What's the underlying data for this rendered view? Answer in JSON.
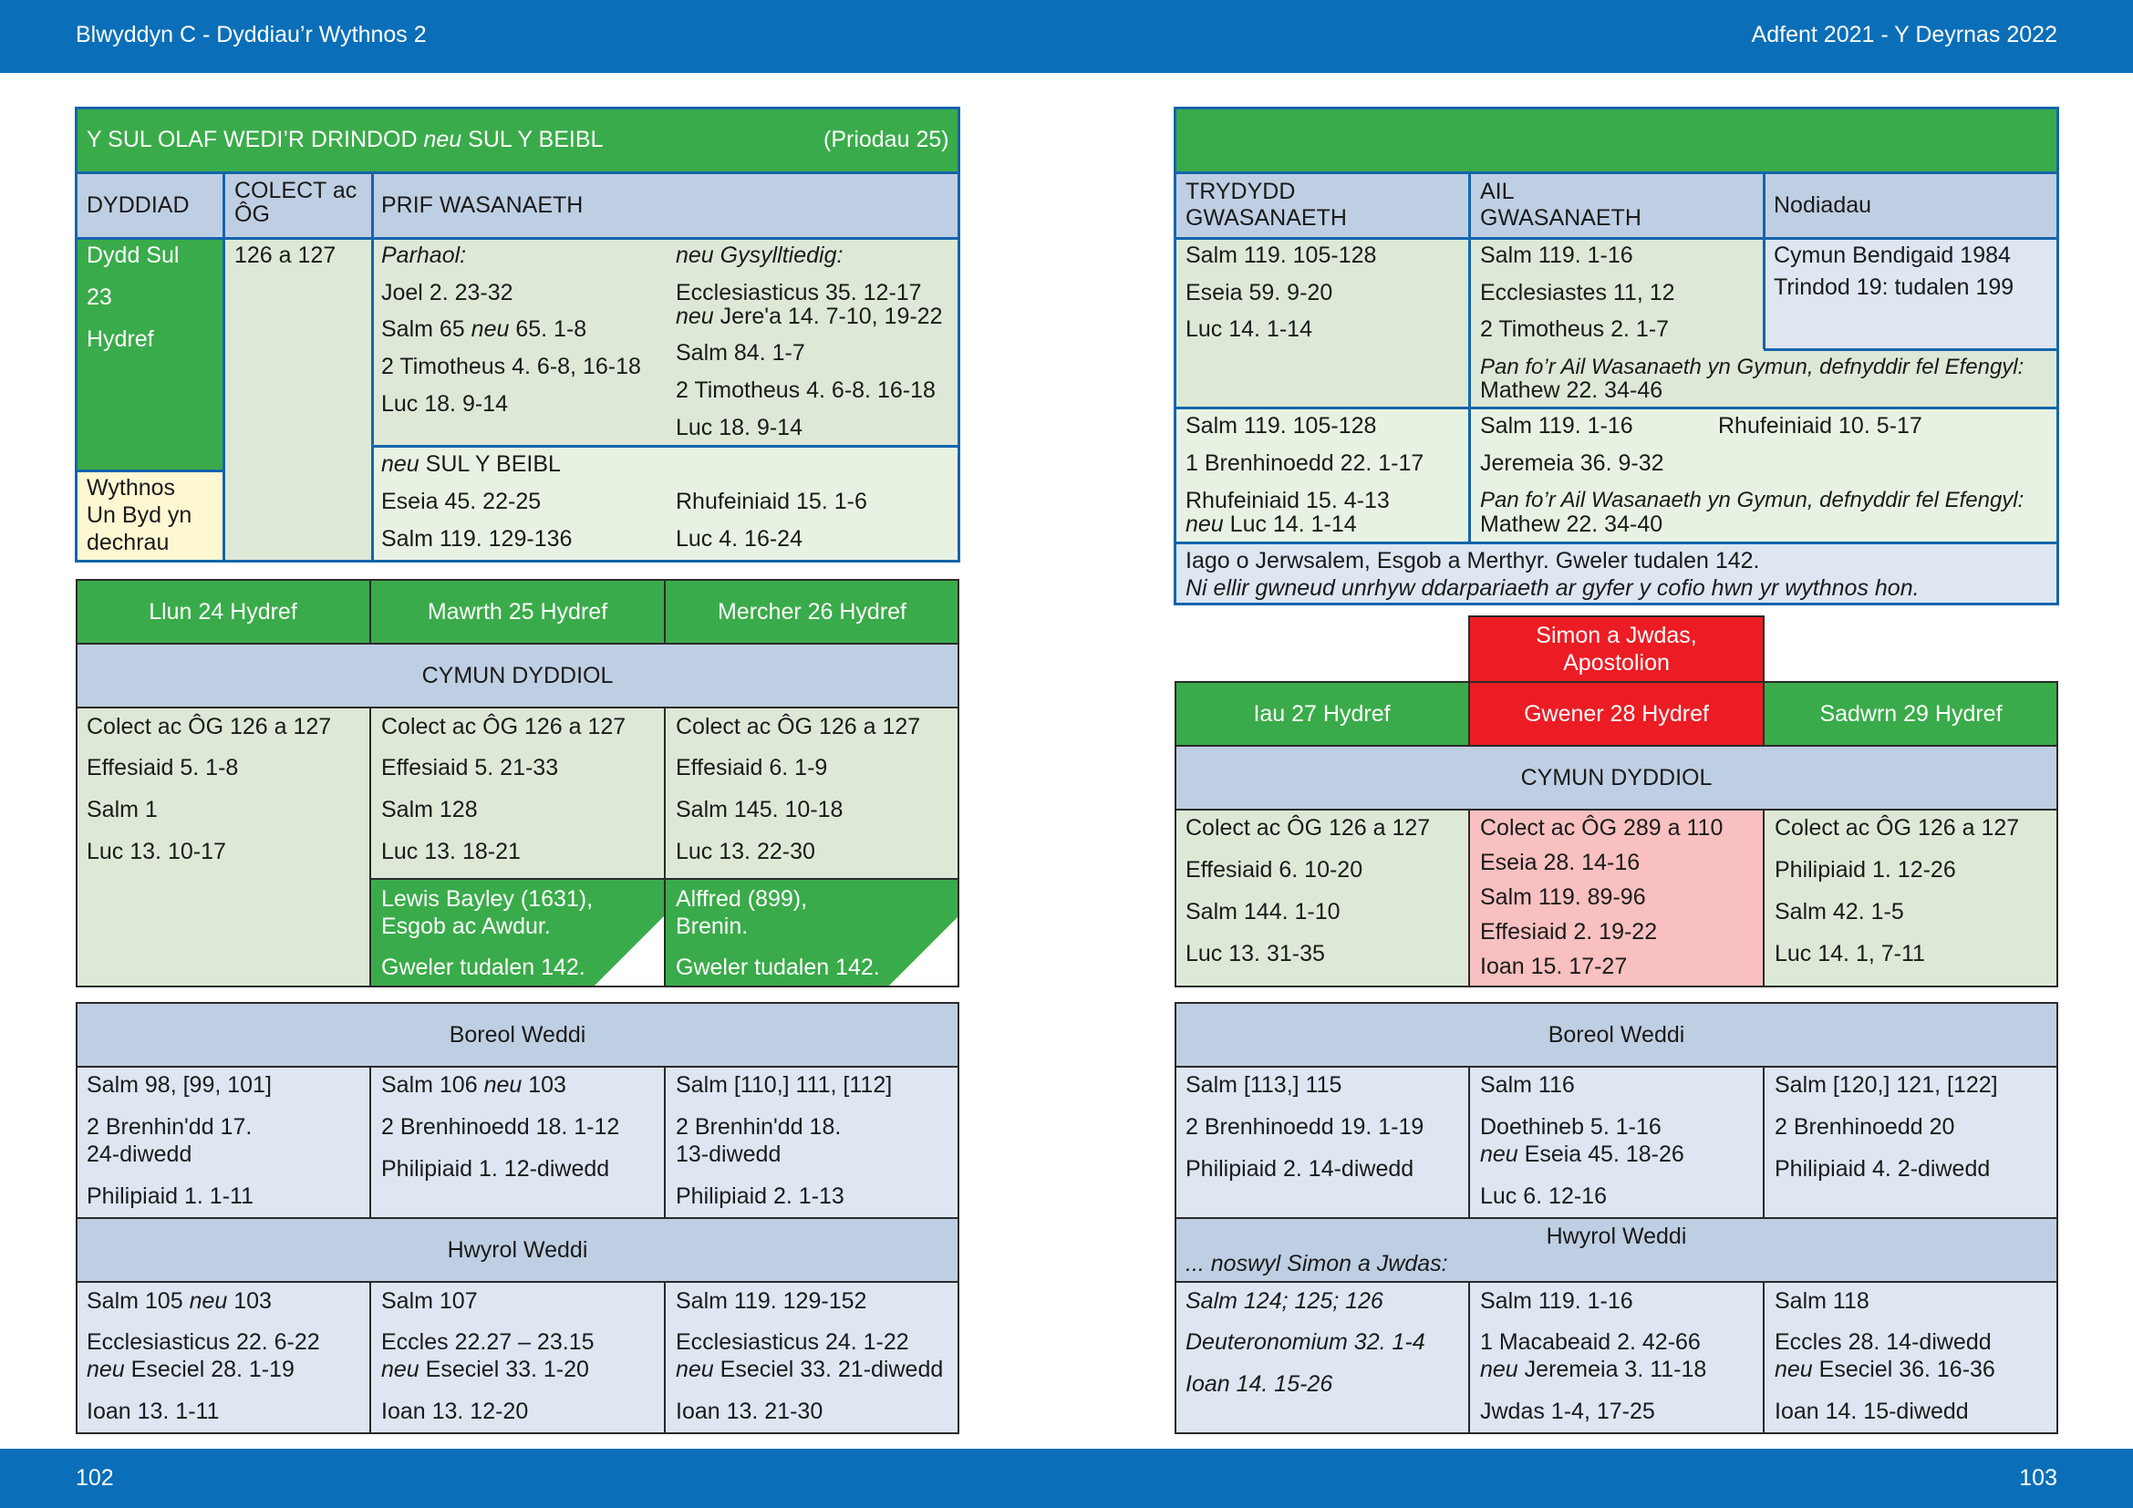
{
  "header": {
    "left": "Blwyddyn  C - Dyddiau’r Wythnos 2",
    "right": "Adfent 2021 - Y Deyrnas 2022"
  },
  "footer": {
    "left_page": "102",
    "right_page": "103"
  },
  "sunday": {
    "title_a": "Y SUL OLAF WEDI’R DRINDOD ",
    "title_neu": "neu",
    "title_b": " SUL Y BEIBL",
    "priodau": "(Priodau 25)",
    "col_dyddiad": "DYDDIAD",
    "col_colect": "COLECT ac ÔG",
    "col_prif": "PRIF WASANAETH",
    "date_lines": [
      "Dydd Sul",
      "23",
      "Hydref"
    ],
    "wythnos": [
      "Wythnos",
      "Un Byd yn",
      "dechrau"
    ],
    "colect_value": "126 a 127",
    "parhaol": "Parhaol:",
    "parhaol_readings": [
      "Joel 2. 23-32",
      "Salm 65 neu 65. 1-8",
      "2 Timotheus 4. 6-8, 16-18",
      "Luc 18. 9-14"
    ],
    "cysylltiedig": "neu Gysylltiedig:",
    "cysylltiedig_readings": [
      "Ecclesiasticus 35. 12-17",
      "neu Jere'a 14. 7-10, 19-22",
      "Salm 84. 1-7",
      "2 Timotheus 4. 6-8. 16-18",
      "Luc 18. 9-14"
    ],
    "beibl_title_neu": "neu",
    "beibl_title": " SUL Y BEIBL",
    "beibl_left": [
      "Eseia 45. 22-25",
      "Salm 119. 129-136"
    ],
    "beibl_right": [
      "Rhufeiniaid 15. 1-6",
      "Luc 4. 16-24"
    ],
    "col_trydydd": "TRYDYDD GWASANAETH",
    "col_ail": "AIL GWASANAETH",
    "col_nodiadau": "Nodiadau",
    "trydydd_1": [
      "Salm 119. 105-128",
      "Eseia 59. 9-20",
      "Luc 14. 1-14"
    ],
    "ail_1": [
      "Salm 119. 1-16",
      "Ecclesiastes 11, 12",
      "2 Timotheus 2. 1-7"
    ],
    "nodiadau": [
      "Cymun Bendigaid 1984",
      "Trindod 19: tudalen 199"
    ],
    "efengyl_1_label": "Pan fo’r Ail Wasanaeth yn Gymun, defnyddir fel Efengyl:",
    "efengyl_1": "Mathew 22. 34-46",
    "trydydd_2": [
      "Salm 119. 105-128",
      "1 Brenhinoedd 22. 1-17",
      "Rhufeiniaid 15. 4-13",
      "neu Luc 14. 1-14"
    ],
    "ail_2": [
      "Salm 119. 1-16",
      "Jeremeia 36. 9-32"
    ],
    "ail_2_extra": "Rhufeiniaid 10. 5-17",
    "efengyl_2_label": "Pan fo’r Ail Wasanaeth yn Gymun, defnyddir fel Efengyl:",
    "efengyl_2": "Mathew 22. 34-40",
    "iago_line": "Iago o Jerwsalem, Esgob a Merthyr. Gweler tudalen 142.",
    "iago_note": "Ni ellir gwneud unrhyw ddarpariaeth ar gyfer y cofio hwn yr wythnos hon."
  },
  "weekdays_left": {
    "days": [
      "Llun 24 Hydref",
      "Mawrth 25 Hydref",
      "Mercher 26 Hydref"
    ],
    "cymun": "CYMUN DYDDIOL",
    "cymun_cols": [
      [
        "Colect ac ÔG 126 a 127",
        "Effesiaid 5. 1-8",
        "Salm 1",
        "Luc 13. 10-17"
      ],
      [
        "Colect ac ÔG 126 a 127",
        "Effesiaid 5. 21-33",
        "Salm 128",
        "Luc 13. 18-21"
      ],
      [
        "Colect ac ÔG 126 a 127",
        "Effesiaid 6. 1-9",
        "Salm 145. 10-18",
        "Luc 13. 22-30"
      ]
    ],
    "commem": [
      {
        "l1": "Lewis Bayley (1631),",
        "l2": "Esgob ac Awdur.",
        "see": "Gweler tudalen 142."
      },
      {
        "l1": "Alffred (899),",
        "l2": "Brenin.",
        "see": "Gweler tudalen 142."
      }
    ],
    "boreol": "Boreol Weddi",
    "boreol_cols": [
      [
        "Salm 98, [99, 101]",
        "2 Brenhin'dd 17.",
        "24-diwedd",
        "Philipiaid 1. 1-11"
      ],
      [
        "Salm 106 neu 103",
        "2 Brenhinoedd 18. 1-12",
        "Philipiaid 1. 12-diwedd"
      ],
      [
        "Salm [110,] 111, [112]",
        "2 Brenhin'dd 18.",
        "13-diwedd",
        "Philipiaid 2. 1-13"
      ]
    ],
    "hwyrol": "Hwyrol Weddi",
    "hwyrol_cols": [
      [
        "Salm 105 neu 103",
        "Ecclesiasticus 22. 6-22",
        "neu Eseciel 28. 1-19",
        "Ioan 13. 1-11"
      ],
      [
        "Salm 107",
        "Eccles 22.27 – 23.15",
        "neu Eseciel 33. 1-20",
        "Ioan 13. 12-20"
      ],
      [
        "Salm 119. 129-152",
        "Ecclesiasticus 24. 1-22",
        "neu Eseciel 33. 21-diwedd",
        "Ioan 13. 21-30"
      ]
    ]
  },
  "weekdays_right": {
    "feast": [
      "Simon a Jwdas,",
      "Apostolion"
    ],
    "days": [
      "Iau 27 Hydref",
      "Gwener 28 Hydref",
      "Sadwrn 29 Hydref"
    ],
    "cymun": "CYMUN DYDDIOL",
    "cymun_cols": [
      [
        "Colect ac ÔG 126 a 127",
        "Effesiaid 6. 10-20",
        "Salm 144. 1-10",
        "Luc 13. 31-35"
      ],
      [
        "Colect ac ÔG 289 a 110",
        "Eseia 28. 14-16",
        "Salm 119. 89-96",
        "Effesiaid 2. 19-22",
        "Ioan 15. 17-27"
      ],
      [
        "Colect ac ÔG 126 a 127",
        "Philipiaid 1. 12-26",
        "Salm 42. 1-5",
        "Luc 14. 1, 7-11"
      ]
    ],
    "boreol": "Boreol Weddi",
    "boreol_cols": [
      [
        "Salm [113,] 115",
        "2 Brenhinoedd 19. 1-19",
        "Philipiaid 2. 14-diwedd"
      ],
      [
        "Salm 116",
        "Doethineb 5. 1-16",
        "neu Eseia 45. 18-26",
        "Luc 6. 12-16"
      ],
      [
        "Salm [120,] 121, [122]",
        "2 Brenhinoedd 20",
        "Philipiaid 4. 2-diwedd"
      ]
    ],
    "hwyrol": "Hwyrol Weddi",
    "noswyl": "... noswyl Simon a Jwdas:",
    "hwyrol_cols": [
      [
        "Salm 124; 125; 126",
        "Deuteronomium 32. 1-4",
        "Ioan 14. 15-26"
      ],
      [
        "Salm 119. 1-16",
        "1 Macabeaid 2. 42-66",
        "neu Jeremeia 3. 11-18",
        "Jwdas 1-4, 17-25"
      ],
      [
        "Salm 118",
        "Eccles 28. 14-diwedd",
        "neu Eseciel 36. 16-36",
        "Ioan 14. 15-diwedd"
      ]
    ]
  },
  "colors": {
    "band_blue": "#0a6fb8",
    "green": "#3aab4a",
    "light_green": "#dde9d6",
    "header_blue": "#bfcfe3",
    "light_blue": "#dde6f1",
    "red": "#ec1c24",
    "pink": "#f8c0c0",
    "cream": "#fdf7d2"
  }
}
